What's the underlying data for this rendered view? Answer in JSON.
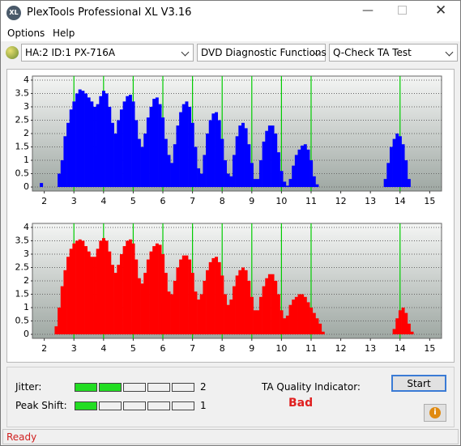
{
  "window": {
    "title": "PlexTools Professional XL V3.16"
  },
  "menu": [
    "Options",
    "Help"
  ],
  "toolbar": {
    "drive": "HA:2 ID:1  PX-716A",
    "function": "DVD Diagnostic Functions",
    "test": "Q-Check TA Test"
  },
  "chart_data": [
    {
      "type": "bar",
      "color": "#0000ff",
      "xlim": [
        1.6,
        15.4
      ],
      "ylim": [
        -0.15,
        4.15
      ],
      "xticks": [
        2,
        3,
        4,
        5,
        6,
        7,
        8,
        9,
        10,
        11,
        12,
        13,
        14,
        15
      ],
      "yticks": [
        0,
        0.5,
        1,
        1.5,
        2,
        2.5,
        3,
        3.5,
        4
      ],
      "grid": true,
      "marker_lines": [
        3,
        4,
        5,
        6,
        7,
        8,
        9,
        10,
        11,
        14
      ],
      "marker_color": "#00cc00",
      "x": [
        1.9,
        2.5,
        2.6,
        2.7,
        2.8,
        2.9,
        3.0,
        3.1,
        3.2,
        3.3,
        3.4,
        3.5,
        3.6,
        3.7,
        3.8,
        3.9,
        4.0,
        4.1,
        4.2,
        4.3,
        4.4,
        4.5,
        4.6,
        4.7,
        4.8,
        4.9,
        5.0,
        5.1,
        5.2,
        5.3,
        5.4,
        5.5,
        5.6,
        5.7,
        5.8,
        5.9,
        6.0,
        6.1,
        6.2,
        6.3,
        6.4,
        6.5,
        6.6,
        6.7,
        6.8,
        6.9,
        7.0,
        7.1,
        7.2,
        7.3,
        7.4,
        7.5,
        7.6,
        7.7,
        7.8,
        7.9,
        8.0,
        8.1,
        8.2,
        8.3,
        8.4,
        8.5,
        8.6,
        8.7,
        8.8,
        8.9,
        9.0,
        9.1,
        9.2,
        9.3,
        9.4,
        9.5,
        9.6,
        9.7,
        9.8,
        9.9,
        10.0,
        10.1,
        10.2,
        10.3,
        10.4,
        10.5,
        10.6,
        10.7,
        10.8,
        10.9,
        11.0,
        11.1,
        11.2,
        13.5,
        13.6,
        13.7,
        13.8,
        13.9,
        14.0,
        14.1,
        14.2,
        14.3
      ],
      "values": [
        0.15,
        0.5,
        1.0,
        1.9,
        2.4,
        2.9,
        3.2,
        3.5,
        3.65,
        3.6,
        3.5,
        3.35,
        3.2,
        3.0,
        3.1,
        3.4,
        3.6,
        3.5,
        3.0,
        2.4,
        2.0,
        2.5,
        2.9,
        3.2,
        3.4,
        3.45,
        3.2,
        2.5,
        1.8,
        1.5,
        2.0,
        2.6,
        3.0,
        3.3,
        3.35,
        3.1,
        2.6,
        1.8,
        1.2,
        0.9,
        1.6,
        2.3,
        2.8,
        3.1,
        3.2,
        3.0,
        2.4,
        1.5,
        0.7,
        0.5,
        1.2,
        2.0,
        2.5,
        2.75,
        2.8,
        2.5,
        1.8,
        1.0,
        0.5,
        0.4,
        1.2,
        1.9,
        2.3,
        2.4,
        2.2,
        1.6,
        0.9,
        0.3,
        0.3,
        1.0,
        1.7,
        2.1,
        2.3,
        2.3,
        2.0,
        1.3,
        0.6,
        0.2,
        0.05,
        0.3,
        0.8,
        1.2,
        1.4,
        1.55,
        1.6,
        1.4,
        1.0,
        0.4,
        0.1,
        0.3,
        0.9,
        1.5,
        1.8,
        2.0,
        1.9,
        1.6,
        1.0,
        0.3
      ]
    },
    {
      "type": "bar",
      "color": "#ff0000",
      "xlim": [
        1.6,
        15.4
      ],
      "ylim": [
        -0.15,
        4.15
      ],
      "xticks": [
        2,
        3,
        4,
        5,
        6,
        7,
        8,
        9,
        10,
        11,
        12,
        13,
        14,
        15
      ],
      "yticks": [
        0,
        0.5,
        1,
        1.5,
        2,
        2.5,
        3,
        3.5,
        4
      ],
      "grid": true,
      "marker_lines": [
        3,
        4,
        5,
        6,
        7,
        8,
        9,
        10,
        11,
        14
      ],
      "marker_color": "#00cc00",
      "x": [
        2.4,
        2.5,
        2.6,
        2.7,
        2.8,
        2.9,
        3.0,
        3.1,
        3.2,
        3.3,
        3.4,
        3.5,
        3.6,
        3.7,
        3.8,
        3.9,
        4.0,
        4.1,
        4.2,
        4.3,
        4.4,
        4.5,
        4.6,
        4.7,
        4.8,
        4.9,
        5.0,
        5.1,
        5.2,
        5.3,
        5.4,
        5.5,
        5.6,
        5.7,
        5.8,
        5.9,
        6.0,
        6.1,
        6.2,
        6.3,
        6.4,
        6.5,
        6.6,
        6.7,
        6.8,
        6.9,
        7.0,
        7.1,
        7.2,
        7.3,
        7.4,
        7.5,
        7.6,
        7.7,
        7.8,
        7.9,
        8.0,
        8.1,
        8.2,
        8.3,
        8.4,
        8.5,
        8.6,
        8.7,
        8.8,
        8.9,
        9.0,
        9.1,
        9.2,
        9.3,
        9.4,
        9.5,
        9.6,
        9.7,
        9.8,
        9.9,
        10.0,
        10.1,
        10.2,
        10.3,
        10.4,
        10.5,
        10.6,
        10.7,
        10.8,
        10.9,
        11.0,
        11.1,
        11.2,
        11.3,
        11.4,
        13.8,
        13.9,
        14.0,
        14.1,
        14.2,
        14.3,
        14.4
      ],
      "values": [
        0.3,
        1.0,
        1.8,
        2.4,
        2.9,
        3.2,
        3.4,
        3.5,
        3.55,
        3.5,
        3.3,
        3.1,
        2.9,
        2.9,
        3.2,
        3.5,
        3.6,
        3.5,
        3.1,
        2.6,
        2.3,
        2.6,
        3.0,
        3.3,
        3.5,
        3.55,
        3.4,
        2.8,
        2.1,
        1.9,
        2.3,
        2.8,
        3.1,
        3.3,
        3.4,
        3.35,
        3.0,
        2.3,
        1.6,
        1.5,
        2.0,
        2.5,
        2.8,
        2.95,
        2.95,
        2.8,
        2.3,
        1.6,
        1.3,
        1.5,
        2.0,
        2.4,
        2.7,
        2.85,
        2.9,
        2.7,
        2.2,
        1.5,
        1.1,
        1.3,
        1.8,
        2.2,
        2.4,
        2.5,
        2.4,
        2.0,
        1.4,
        0.9,
        0.9,
        1.4,
        1.8,
        2.1,
        2.25,
        2.25,
        2.0,
        1.5,
        0.9,
        0.6,
        0.7,
        1.1,
        1.3,
        1.4,
        1.5,
        1.5,
        1.4,
        1.2,
        1.0,
        0.8,
        0.6,
        0.4,
        0.1,
        0.2,
        0.6,
        0.9,
        1.0,
        0.8,
        0.4,
        0.1
      ]
    }
  ],
  "panel": {
    "jitter_label": "Jitter:",
    "jitter": 2,
    "peak_shift_label": "Peak Shift:",
    "peak_shift": 1,
    "ta_quality_label": "TA Quality Indicator:",
    "ta_quality": "Bad",
    "start": "Start"
  },
  "status": "Ready"
}
